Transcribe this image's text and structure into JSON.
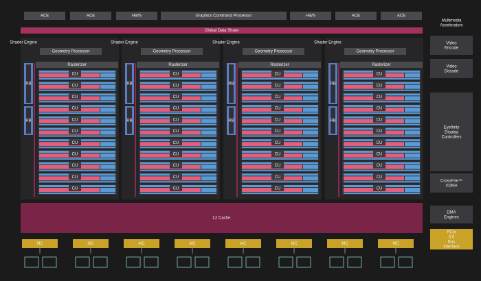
{
  "top_row": [
    "ACE",
    "ACE",
    "HWS",
    "Graphics Command Processor",
    "HWS",
    "ACE",
    "ACE"
  ],
  "global_data_share": "Global Data Share",
  "shader_engines": [
    {
      "title": "Shader Engine",
      "geometry": "Geometry Processor",
      "rasterizer": "Rasterizer",
      "rbs": [
        "RB",
        "RB"
      ],
      "cus": [
        "CU",
        "CU",
        "CU",
        "CU",
        "CU",
        "CU",
        "CU",
        "CU",
        "CU",
        "CU",
        "CU"
      ]
    },
    {
      "title": "Shader Engine",
      "geometry": "Geometry Processor",
      "rasterizer": "Rasterizer",
      "rbs": [
        "RB",
        "RB"
      ],
      "cus": [
        "CU",
        "CU",
        "CU",
        "CU",
        "CU",
        "CU",
        "CU",
        "CU",
        "CU",
        "CU",
        "CU"
      ]
    },
    {
      "title": "Shader Engine",
      "geometry": "Geometry Processor",
      "rasterizer": "Rasterizer",
      "rbs": [
        "RB",
        "RB"
      ],
      "cus": [
        "CU",
        "CU",
        "CU",
        "CU",
        "CU",
        "CU",
        "CU",
        "CU",
        "CU",
        "CU",
        "CU"
      ]
    },
    {
      "title": "Shader Engine",
      "geometry": "Geometry Processor",
      "rasterizer": "Rasterizer",
      "rbs": [
        "RB",
        "RB"
      ],
      "cus": [
        "CU",
        "CU",
        "CU",
        "CU",
        "CU",
        "CU",
        "CU",
        "CU",
        "CU",
        "CU",
        "CU"
      ]
    }
  ],
  "l2_cache": "L2 Cache",
  "memory_controllers": [
    "MC",
    "MC",
    "MC",
    "MC",
    "MC",
    "MC",
    "MC",
    "MC"
  ],
  "side": {
    "header": "Multimedia Accelerators",
    "video_encode": "Video Encode",
    "video_decode": "Video Decode",
    "eyefinity": "Eyefinity Display Controllers",
    "crossfire": "CrossFire™ XDMA",
    "dma": "DMA Engines",
    "pcie": "PCIe 3.0 Bus Interface"
  }
}
